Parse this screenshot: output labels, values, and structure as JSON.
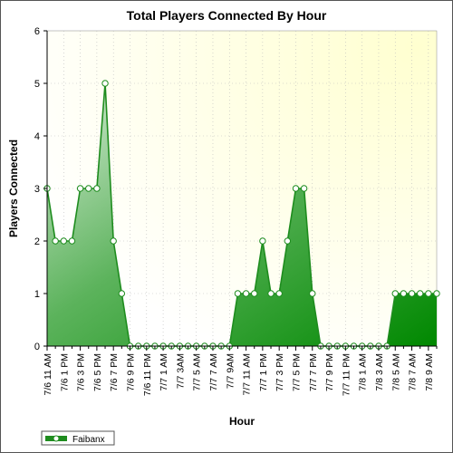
{
  "chart_data": {
    "type": "area",
    "title": "Total Players Connected By Hour",
    "xlabel": "Hour",
    "ylabel": "Players Connected",
    "ylim": [
      0,
      6
    ],
    "yticks": [
      "0",
      "1",
      "2",
      "3",
      "4",
      "5",
      "6"
    ],
    "categories": [
      "7/6 11 AM",
      "",
      "7/6 1 PM",
      "",
      "7/6 3 PM",
      "",
      "7/6 5 PM",
      "",
      "7/6 7 PM",
      "",
      "7/6 9 PM",
      "",
      "7/6 11 PM",
      "",
      "7/7 1 AM",
      "",
      "7/7 3AM",
      "",
      "7/7 5 AM",
      "",
      "7/7 7 AM",
      "",
      "7/7 9AM",
      "",
      "7/7 11 AM",
      "",
      "7/7 1 PM",
      "",
      "7/7 3 PM",
      "",
      "7/7 5 PM",
      "",
      "7/7 7 PM",
      "",
      "7/7 9 PM",
      "",
      "7/7 11 PM",
      "",
      "7/8 1 AM",
      "",
      "7/8 3 AM",
      "",
      "7/8 5 AM",
      "",
      "7/8 7 AM",
      "",
      "7/8 9 AM",
      ""
    ],
    "series": [
      {
        "name": "Faibanx",
        "color": "#1e8c1e",
        "values": [
          3,
          2,
          2,
          2,
          3,
          3,
          3,
          5,
          2,
          1,
          0,
          0,
          0,
          0,
          0,
          0,
          0,
          0,
          0,
          0,
          0,
          0,
          0,
          1,
          1,
          1,
          2,
          1,
          1,
          2,
          3,
          3,
          1,
          0,
          0,
          0,
          0,
          0,
          0,
          0,
          0,
          0,
          1,
          1,
          1,
          1,
          1,
          1
        ]
      }
    ],
    "grid": true,
    "legend": "bottom-left"
  }
}
